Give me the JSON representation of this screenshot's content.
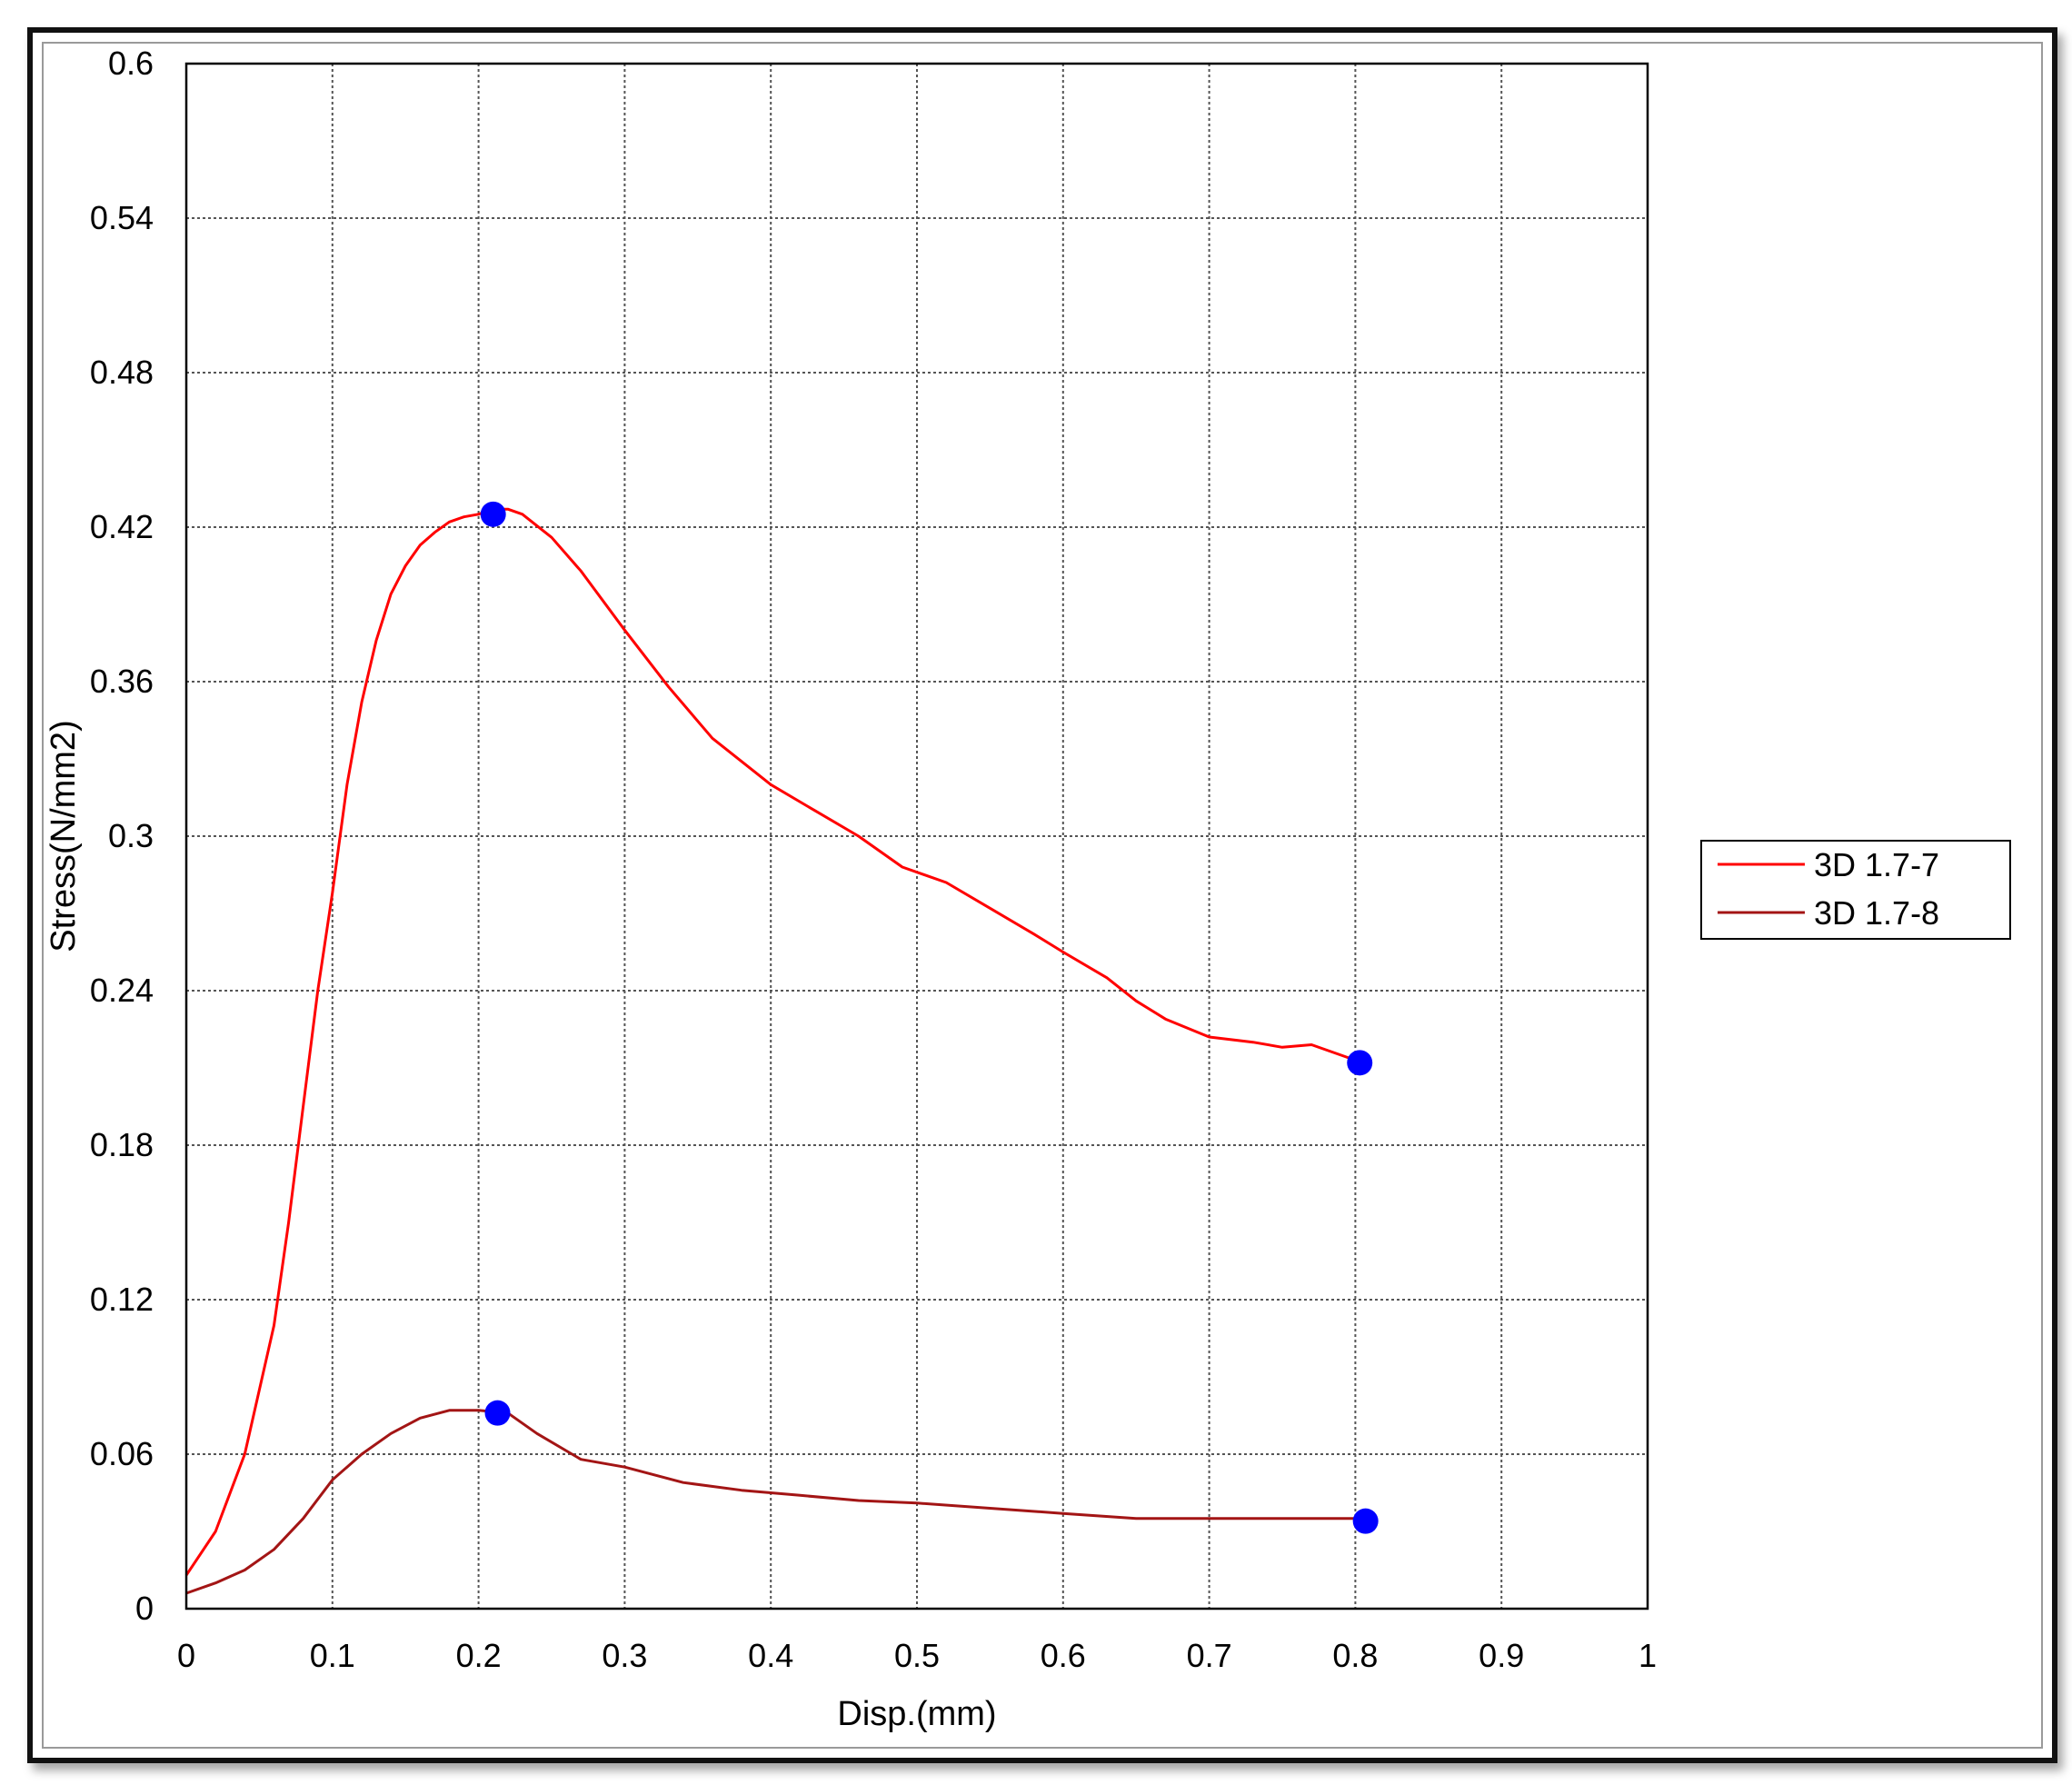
{
  "chart_data": {
    "type": "line",
    "title": "",
    "xlabel": "Disp.(mm)",
    "ylabel": "Stress(N/mm2)",
    "xlim": [
      0,
      1
    ],
    "ylim": [
      0,
      0.6
    ],
    "x_ticks": [
      "0",
      "0.1",
      "0.2",
      "0.3",
      "0.4",
      "0.5",
      "0.6",
      "0.7",
      "0.8",
      "0.9",
      "1"
    ],
    "y_ticks": [
      "0",
      "0.06",
      "0.12",
      "0.18",
      "0.24",
      "0.3",
      "0.36",
      "0.42",
      "0.48",
      "0.54",
      "0.6"
    ],
    "grid": true,
    "legend_position": "right",
    "series": [
      {
        "name": "3D 1.7-7",
        "color": "#ff0000",
        "x": [
          0,
          0.02,
          0.04,
          0.06,
          0.07,
          0.08,
          0.09,
          0.1,
          0.11,
          0.12,
          0.13,
          0.14,
          0.15,
          0.16,
          0.17,
          0.18,
          0.19,
          0.2,
          0.21,
          0.22,
          0.23,
          0.25,
          0.27,
          0.3,
          0.33,
          0.36,
          0.4,
          0.43,
          0.46,
          0.49,
          0.52,
          0.55,
          0.58,
          0.6,
          0.63,
          0.65,
          0.67,
          0.7,
          0.73,
          0.75,
          0.77,
          0.8
        ],
        "y": [
          0.013,
          0.03,
          0.06,
          0.11,
          0.15,
          0.195,
          0.24,
          0.278,
          0.32,
          0.352,
          0.376,
          0.394,
          0.405,
          0.413,
          0.418,
          0.422,
          0.424,
          0.425,
          0.427,
          0.427,
          0.425,
          0.416,
          0.403,
          0.38,
          0.358,
          0.338,
          0.32,
          0.31,
          0.3,
          0.288,
          0.282,
          0.272,
          0.262,
          0.255,
          0.245,
          0.236,
          0.229,
          0.222,
          0.22,
          0.218,
          0.219,
          0.213
        ]
      },
      {
        "name": "3D 1.7-8",
        "color": "#a31515",
        "x": [
          0,
          0.02,
          0.04,
          0.06,
          0.08,
          0.1,
          0.12,
          0.14,
          0.16,
          0.18,
          0.2,
          0.22,
          0.24,
          0.27,
          0.3,
          0.34,
          0.38,
          0.42,
          0.46,
          0.5,
          0.55,
          0.6,
          0.65,
          0.7,
          0.75,
          0.8
        ],
        "y": [
          0.006,
          0.01,
          0.015,
          0.023,
          0.035,
          0.05,
          0.06,
          0.068,
          0.074,
          0.077,
          0.077,
          0.076,
          0.068,
          0.058,
          0.055,
          0.049,
          0.046,
          0.044,
          0.042,
          0.041,
          0.039,
          0.037,
          0.035,
          0.035,
          0.035,
          0.035
        ]
      }
    ],
    "markers": [
      {
        "x": 0.21,
        "y": 0.425,
        "color": "#0000ff"
      },
      {
        "x": 0.803,
        "y": 0.212,
        "color": "#0000ff"
      },
      {
        "x": 0.213,
        "y": 0.076,
        "color": "#0000ff"
      },
      {
        "x": 0.807,
        "y": 0.034,
        "color": "#0000ff"
      }
    ]
  }
}
